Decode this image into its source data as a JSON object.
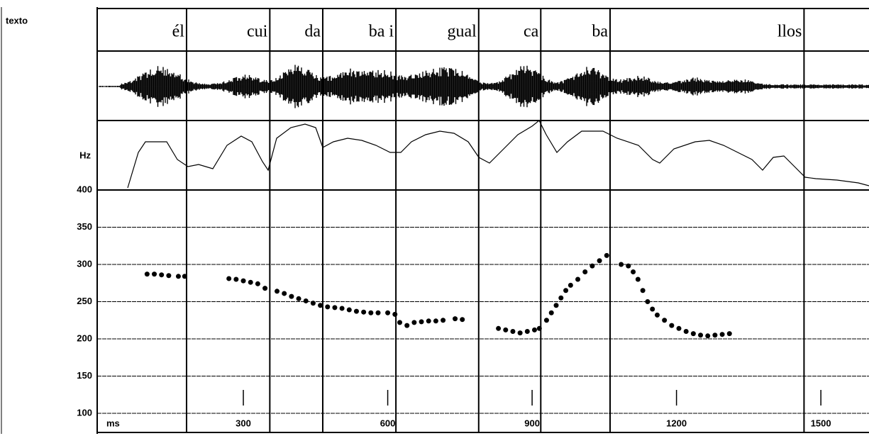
{
  "chart_data": {
    "type": "scatter",
    "row_label": "texto",
    "contour_label": "Hz",
    "x_label": "ms",
    "segments": [
      {
        "label": "él",
        "end": 182
      },
      {
        "label": "cui",
        "end": 355
      },
      {
        "label": "da",
        "end": 465
      },
      {
        "label": "ba i",
        "end": 617
      },
      {
        "label": "gual",
        "end": 789
      },
      {
        "label": "ca",
        "end": 918
      },
      {
        "label": "ba",
        "end": 1062
      },
      {
        "label": "llos",
        "end": 1465
      }
    ],
    "x": [
      100,
      115,
      130,
      145,
      165,
      178,
      270,
      285,
      300,
      315,
      330,
      345,
      370,
      385,
      400,
      415,
      430,
      445,
      460,
      475,
      490,
      505,
      520,
      535,
      550,
      565,
      580,
      600,
      615,
      625,
      640,
      655,
      670,
      685,
      700,
      715,
      740,
      755,
      830,
      845,
      860,
      875,
      890,
      905,
      915,
      930,
      940,
      950,
      960,
      970,
      980,
      995,
      1010,
      1025,
      1040,
      1055,
      1085,
      1100,
      1110,
      1120,
      1130,
      1140,
      1150,
      1160,
      1175,
      1190,
      1205,
      1220,
      1235,
      1250,
      1265,
      1280,
      1295,
      1310
    ],
    "values": [
      287,
      287,
      286,
      285,
      284,
      284,
      281,
      280,
      278,
      276,
      274,
      268,
      264,
      261,
      257,
      254,
      251,
      248,
      245,
      243,
      242,
      241,
      239,
      237,
      236,
      235,
      235,
      235,
      233,
      222,
      218,
      222,
      223,
      224,
      224,
      225,
      227,
      226,
      214,
      212,
      210,
      208,
      210,
      212,
      214,
      225,
      235,
      245,
      255,
      265,
      272,
      280,
      290,
      298,
      305,
      312,
      300,
      298,
      290,
      280,
      265,
      250,
      240,
      232,
      225,
      218,
      214,
      210,
      207,
      205,
      204,
      205,
      206,
      207
    ],
    "color": "#000000",
    "xlim": [
      0,
      1600
    ],
    "xticks": [
      300,
      600,
      900,
      1200,
      1500
    ],
    "ylim": [
      100,
      400
    ],
    "yticks": [
      100,
      150,
      200,
      250,
      300,
      350,
      400
    ],
    "grid": true
  }
}
